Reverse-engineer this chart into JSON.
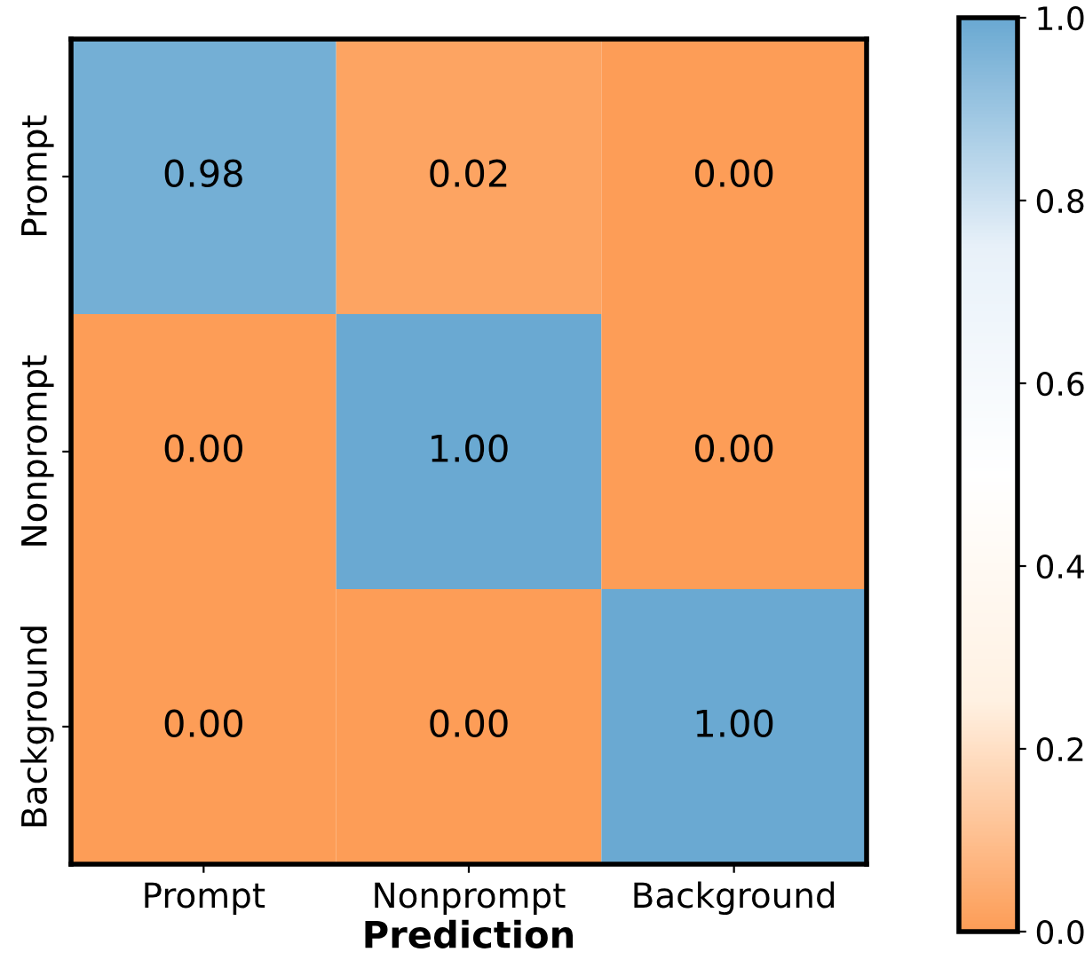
{
  "chart_data": {
    "type": "heatmap",
    "xlabel": "Prediction",
    "categories": [
      "Prompt",
      "Nonprompt",
      "Background"
    ],
    "y_categories": [
      "Prompt",
      "Nonprompt",
      "Background"
    ],
    "cells": [
      [
        0.98,
        0.02,
        0.0
      ],
      [
        0.0,
        1.0,
        0.0
      ],
      [
        0.0,
        0.0,
        1.0
      ]
    ],
    "cell_labels": [
      [
        "0.98",
        "0.02",
        "0.00"
      ],
      [
        "0.00",
        "1.00",
        "0.00"
      ],
      [
        "0.00",
        "0.00",
        "1.00"
      ]
    ],
    "clim": [
      0.0,
      1.0
    ],
    "cticks": [
      {
        "value": 0.0,
        "label": "0.0"
      },
      {
        "value": 0.2,
        "label": "0.2"
      },
      {
        "value": 0.4,
        "label": "0.4"
      },
      {
        "value": 0.6,
        "label": "0.6"
      },
      {
        "value": 0.8,
        "label": "0.8"
      },
      {
        "value": 1.0,
        "label": "1.0"
      }
    ]
  }
}
